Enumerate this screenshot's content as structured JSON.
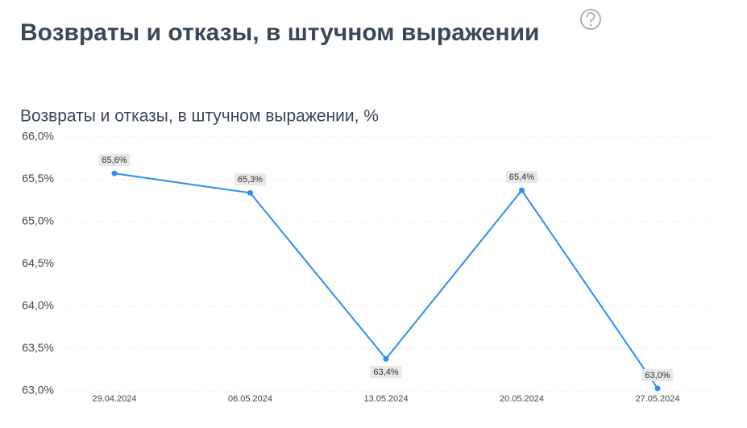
{
  "header": {
    "title": "Возвраты и отказы, в штучном выражении"
  },
  "chart_data": {
    "type": "line",
    "title": "Возвраты и отказы, в штучном выражении, %",
    "categories": [
      "29.04.2024",
      "06.05.2024",
      "13.05.2024",
      "20.05.2024",
      "27.05.2024"
    ],
    "series": [
      {
        "name": "Возвраты и отказы",
        "color": "#2b8ef0",
        "values": [
          65.57,
          65.34,
          63.38,
          65.37,
          63.03
        ],
        "value_labels": [
          "65,6%",
          "65,3%",
          "63,4%",
          "65,4%",
          "63,0%"
        ]
      }
    ],
    "ylim": [
      63,
      66
    ],
    "yticks": [
      {
        "value": 63,
        "label": "63,0%"
      },
      {
        "value": 63.5,
        "label": "63,5%"
      },
      {
        "value": 64,
        "label": "64,0%"
      },
      {
        "value": 64.5,
        "label": "64,5%"
      },
      {
        "value": 65,
        "label": "65,0%"
      },
      {
        "value": 65.5,
        "label": "65,5%"
      },
      {
        "value": 66,
        "label": "66,0%"
      }
    ],
    "grid": true
  }
}
